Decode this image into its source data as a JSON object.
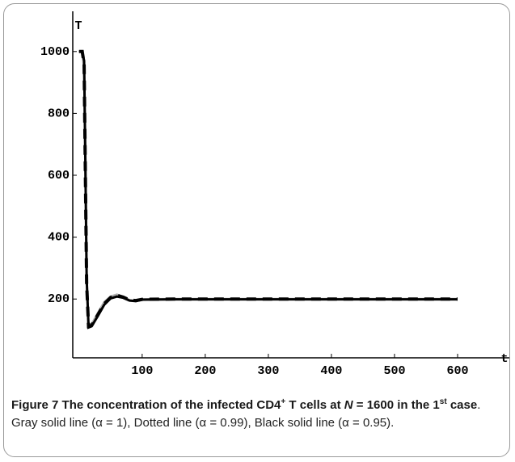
{
  "chart_data": {
    "type": "line",
    "ylabel": "T",
    "xlabel": "t",
    "xlim": [
      -10,
      682
    ],
    "ylim": [
      10,
      1130
    ],
    "xticks": [
      100,
      200,
      300,
      400,
      500,
      600
    ],
    "yticks": [
      200,
      400,
      600,
      800,
      1000
    ],
    "x": [
      0,
      5,
      8,
      10,
      12,
      15,
      20,
      30,
      40,
      50,
      60,
      70,
      80,
      90,
      100,
      150,
      200,
      300,
      400,
      500,
      600
    ],
    "series": [
      {
        "color": "#b0b0b0",
        "dash": false,
        "values": [
          1000,
          1000,
          950,
          620,
          260,
          118,
          118,
          155,
          190,
          208,
          214,
          207,
          196,
          194,
          199,
          200,
          200,
          200,
          200,
          200,
          200
        ]
      },
      {
        "color": "#000000",
        "dash": true,
        "values": [
          1000,
          1000,
          960,
          600,
          250,
          112,
          115,
          150,
          185,
          205,
          212,
          206,
          197,
          195,
          199,
          200,
          200,
          200,
          200,
          200,
          200
        ]
      },
      {
        "color": "#000000",
        "dash": false,
        "values": [
          1000,
          1000,
          970,
          640,
          270,
          108,
          112,
          146,
          182,
          202,
          208,
          204,
          195,
          193,
          198,
          199,
          199,
          199,
          199,
          199,
          199
        ]
      }
    ],
    "caption": {
      "label": "Figure 7",
      "title_parts": [
        " The concentration of the infected CD4",
        "+",
        " T cells at ",
        "N",
        " = 1600 in the 1",
        "st",
        " case"
      ],
      "text": ". Gray solid line (α = 1), Dotted line (α = 0.99), Black solid line (α = 0.95)."
    }
  }
}
